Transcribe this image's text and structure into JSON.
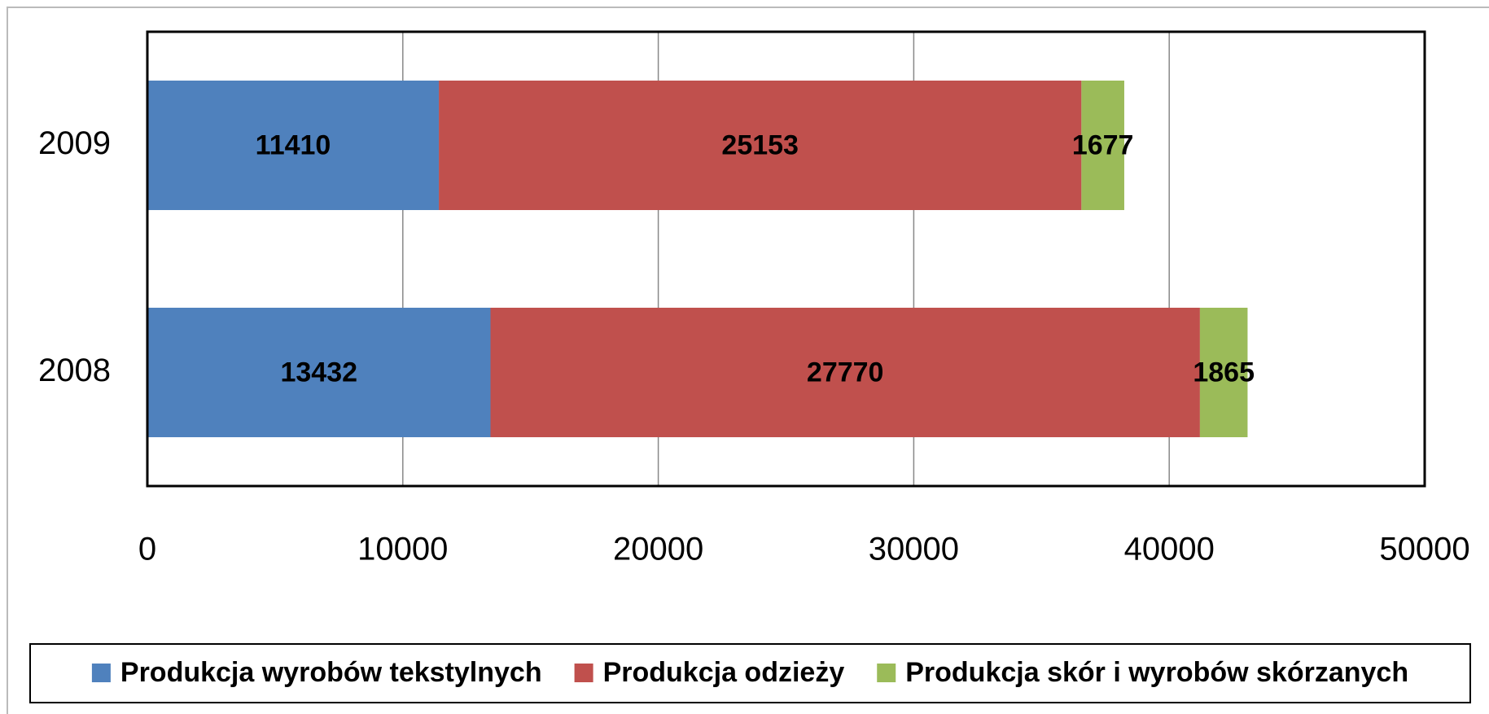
{
  "chart_data": {
    "type": "stacked-bar-horizontal",
    "categories": [
      "2009",
      "2008"
    ],
    "series": [
      {
        "name": "Produkcja wyrobów tekstylnych",
        "color": "#4f81bd",
        "values": [
          11410,
          13432
        ]
      },
      {
        "name": "Produkcja odzieży",
        "color": "#c0504d",
        "values": [
          25153,
          27770
        ]
      },
      {
        "name": "Produkcja skór i wyrobów skórzanych",
        "color": "#9bbb59",
        "values": [
          1677,
          1865
        ]
      }
    ],
    "xlim": [
      0,
      50000
    ],
    "xticks": [
      0,
      10000,
      20000,
      30000,
      40000,
      50000
    ],
    "grid": true,
    "legend": "bottom"
  }
}
